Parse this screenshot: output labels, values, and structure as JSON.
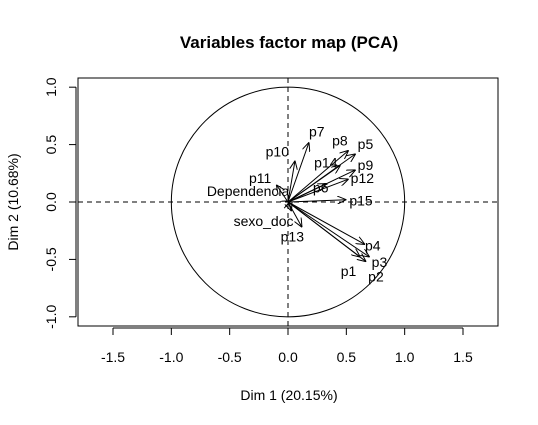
{
  "chart_data": {
    "type": "scatter",
    "subtype": "pca-variables-factor-map",
    "title": "Variables factor map (PCA)",
    "xlabel": "Dim 1 (20.15%)",
    "ylabel": "Dim 2 (10.68%)",
    "xlim": [
      -1.8,
      1.8
    ],
    "ylim": [
      -1.08,
      1.08
    ],
    "x_ticks": [
      -1.5,
      -1.0,
      -0.5,
      0.0,
      0.5,
      1.0,
      1.5
    ],
    "x_tick_labels": [
      "-1.5",
      "-1.0",
      "-0.5",
      "0.0",
      "0.5",
      "1.0",
      "1.5"
    ],
    "y_ticks": [
      -1.0,
      -0.5,
      0.0,
      0.5,
      1.0
    ],
    "y_tick_labels": [
      "-1.0",
      "-0.5",
      "0.0",
      "0.5",
      "1.0"
    ],
    "unit_circle": true,
    "reference_lines": {
      "x": 0,
      "y": 0,
      "style": "dashed"
    },
    "arrow_color": "#000000",
    "variables": [
      {
        "name": "p7",
        "x": 0.18,
        "y": 0.52
      },
      {
        "name": "p10",
        "x": 0.06,
        "y": 0.36
      },
      {
        "name": "p11",
        "x": -0.1,
        "y": 0.15
      },
      {
        "name": "Dependencia",
        "x": 0.02,
        "y": 0.01
      },
      {
        "name": "sexo_doc",
        "x": 0.03,
        "y": -0.08
      },
      {
        "name": "p13",
        "x": 0.12,
        "y": -0.22
      },
      {
        "name": "p8",
        "x": 0.52,
        "y": 0.45
      },
      {
        "name": "p5",
        "x": 0.58,
        "y": 0.42
      },
      {
        "name": "p14",
        "x": 0.45,
        "y": 0.32
      },
      {
        "name": "p9",
        "x": 0.58,
        "y": 0.28
      },
      {
        "name": "p12",
        "x": 0.52,
        "y": 0.2
      },
      {
        "name": "p6",
        "x": 0.33,
        "y": 0.16
      },
      {
        "name": "p15",
        "x": 0.5,
        "y": 0.02
      },
      {
        "name": "p4",
        "x": 0.66,
        "y": -0.37
      },
      {
        "name": "p3",
        "x": 0.7,
        "y": -0.48
      },
      {
        "name": "p1",
        "x": 0.62,
        "y": -0.48
      },
      {
        "name": "p2",
        "x": 0.67,
        "y": -0.52
      }
    ]
  }
}
